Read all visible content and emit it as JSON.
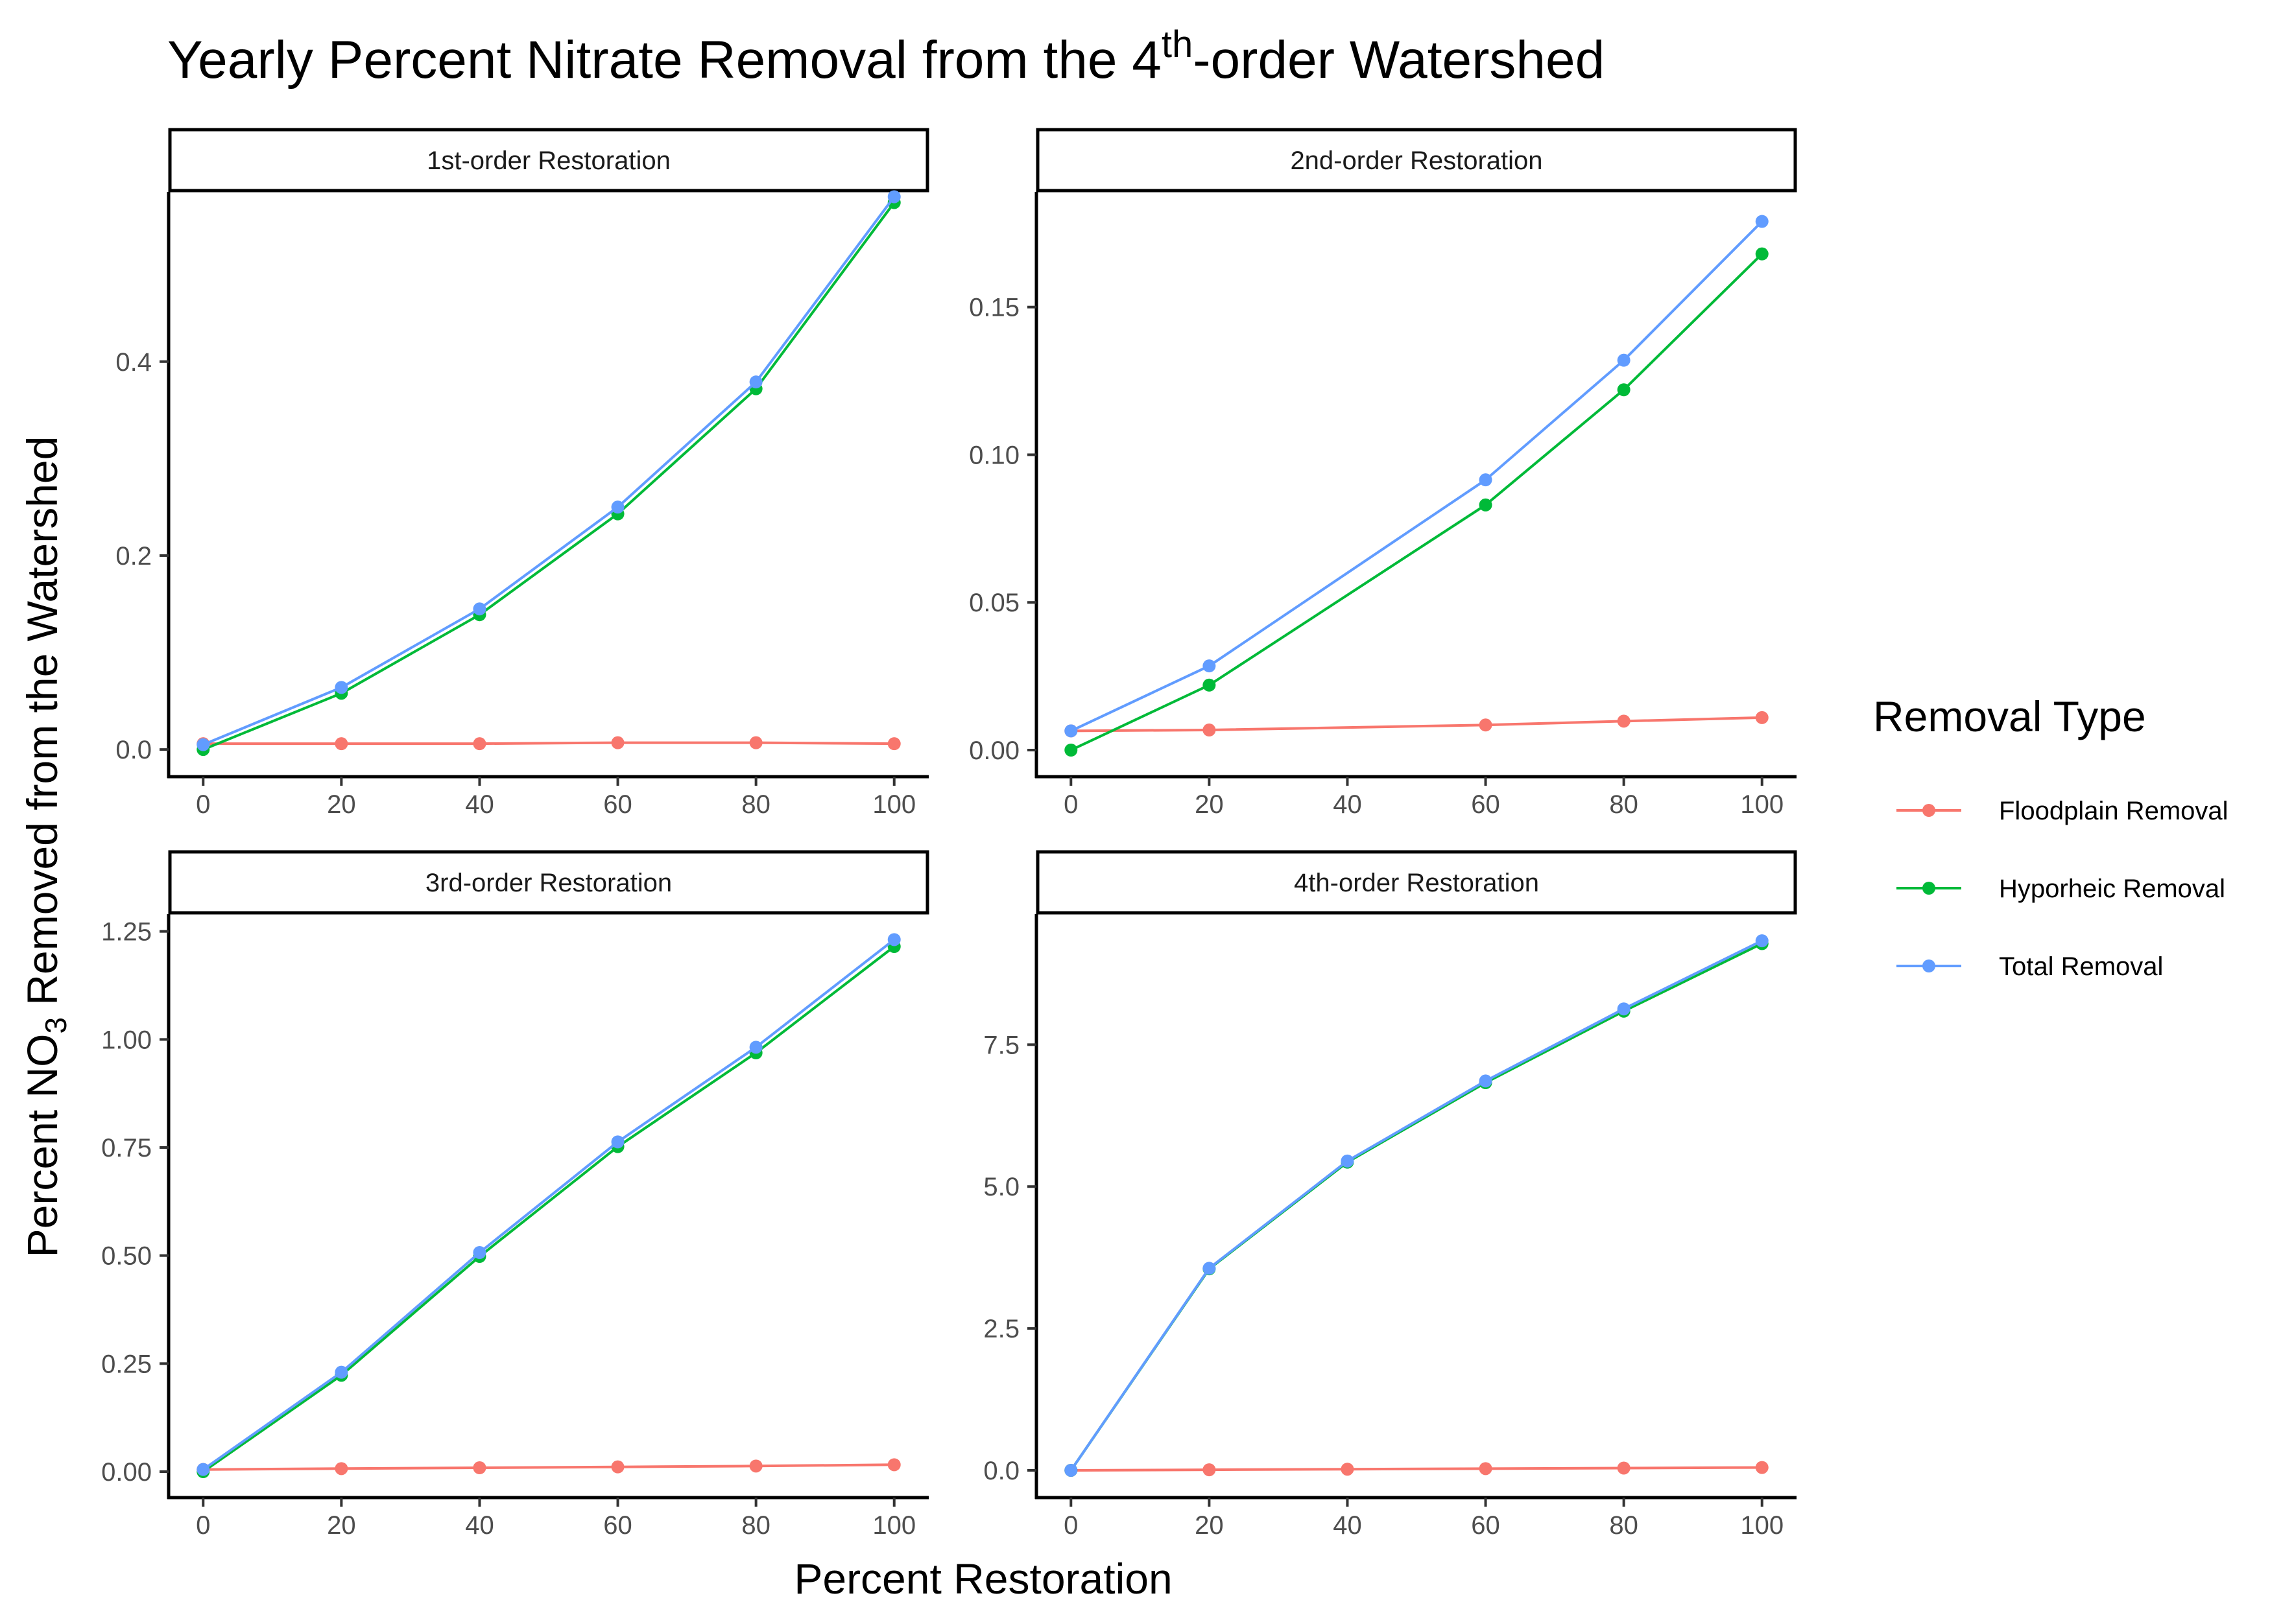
{
  "title": {
    "main": "Yearly Percent Nitrate Removal from the 4",
    "sup": "th",
    "rest": "-order Watershed"
  },
  "axis_titles": {
    "x": "Percent Restoration",
    "y_pre": "Percent NO",
    "y_sub": "3",
    "y_post": " Removed from the Watershed"
  },
  "legend": {
    "title": "Removal Type",
    "position": "right",
    "items": [
      {
        "label": "Floodplain Removal",
        "color": "#F8766D"
      },
      {
        "label": "Hyporheic Removal",
        "color": "#00BA38"
      },
      {
        "label": "Total Removal",
        "color": "#619CFF"
      }
    ]
  },
  "chart_data": [
    {
      "type": "line",
      "panel": "1st-order Restoration",
      "x": [
        0,
        20,
        40,
        60,
        80,
        100
      ],
      "xlim": [
        -5,
        105
      ],
      "x_ticks": [
        "0",
        "20",
        "40",
        "60",
        "80",
        "100"
      ],
      "ylim": [
        -0.028,
        0.575
      ],
      "y_ticks": [
        0.0,
        0.2,
        0.4
      ],
      "y_tick_labels": [
        "0.0",
        "0.2",
        "0.4"
      ],
      "series": [
        {
          "name": "Floodplain Removal",
          "color": "#F8766D",
          "values": [
            0.006,
            0.006,
            0.006,
            0.007,
            0.007,
            0.006
          ]
        },
        {
          "name": "Hyporheic Removal",
          "color": "#00BA38",
          "values": [
            0.0,
            0.058,
            0.139,
            0.243,
            0.372,
            0.564
          ]
        },
        {
          "name": "Total Removal",
          "color": "#619CFF",
          "values": [
            0.005,
            0.064,
            0.145,
            0.25,
            0.379,
            0.57
          ]
        }
      ]
    },
    {
      "type": "line",
      "panel": "2nd-order Restoration",
      "x": [
        0,
        20,
        60,
        80,
        100
      ],
      "xlim": [
        -5,
        105
      ],
      "x_ticks": [
        "0",
        "20",
        "40",
        "60",
        "80",
        "100"
      ],
      "ylim": [
        -0.009,
        0.189
      ],
      "y_ticks": [
        0.0,
        0.05,
        0.1,
        0.15
      ],
      "y_tick_labels": [
        "0.00",
        "0.05",
        "0.10",
        "0.15"
      ],
      "series": [
        {
          "name": "Floodplain Removal",
          "color": "#F8766D",
          "values": [
            0.0065,
            0.0068,
            0.0085,
            0.0098,
            0.011
          ]
        },
        {
          "name": "Hyporheic Removal",
          "color": "#00BA38",
          "values": [
            0.0,
            0.022,
            0.083,
            0.122,
            0.168
          ]
        },
        {
          "name": "Total Removal",
          "color": "#619CFF",
          "values": [
            0.0065,
            0.0285,
            0.0915,
            0.132,
            0.179
          ]
        }
      ]
    },
    {
      "type": "line",
      "panel": "3rd-order Restoration",
      "x": [
        0,
        20,
        40,
        60,
        80,
        100
      ],
      "xlim": [
        -5,
        105
      ],
      "x_ticks": [
        "0",
        "20",
        "40",
        "60",
        "80",
        "100"
      ],
      "ylim": [
        -0.06,
        1.29
      ],
      "y_ticks": [
        0.0,
        0.25,
        0.5,
        0.75,
        1.0,
        1.25
      ],
      "y_tick_labels": [
        "0.00",
        "0.25",
        "0.50",
        "0.75",
        "1.00",
        "1.25"
      ],
      "series": [
        {
          "name": "Floodplain Removal",
          "color": "#F8766D",
          "values": [
            0.005,
            0.007,
            0.009,
            0.011,
            0.013,
            0.016
          ]
        },
        {
          "name": "Hyporheic Removal",
          "color": "#00BA38",
          "values": [
            0.0,
            0.223,
            0.498,
            0.752,
            0.969,
            1.215
          ]
        },
        {
          "name": "Total Removal",
          "color": "#619CFF",
          "values": [
            0.005,
            0.23,
            0.507,
            0.763,
            0.982,
            1.231
          ]
        }
      ]
    },
    {
      "type": "line",
      "panel": "4th-order Restoration",
      "x": [
        0,
        20,
        40,
        60,
        80,
        100
      ],
      "xlim": [
        -5,
        105
      ],
      "x_ticks": [
        "0",
        "20",
        "40",
        "60",
        "80",
        "100"
      ],
      "ylim": [
        -0.48,
        9.8
      ],
      "y_ticks": [
        0.0,
        2.5,
        5.0,
        7.5
      ],
      "y_tick_labels": [
        "0.0",
        "2.5",
        "5.0",
        "7.5"
      ],
      "series": [
        {
          "name": "Floodplain Removal",
          "color": "#F8766D",
          "values": [
            0.0,
            0.01,
            0.02,
            0.03,
            0.04,
            0.05
          ]
        },
        {
          "name": "Hyporheic Removal",
          "color": "#00BA38",
          "values": [
            0.0,
            3.55,
            5.43,
            6.83,
            8.09,
            9.28
          ]
        },
        {
          "name": "Total Removal",
          "color": "#619CFF",
          "values": [
            0.0,
            3.56,
            5.45,
            6.86,
            8.13,
            9.33
          ]
        }
      ]
    }
  ]
}
